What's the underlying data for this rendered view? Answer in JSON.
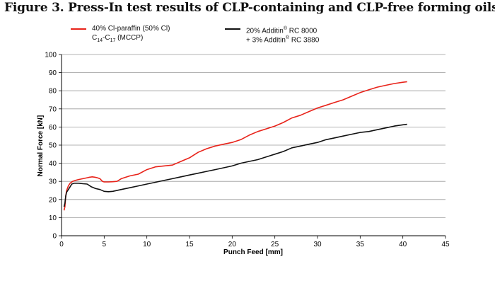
{
  "figure": {
    "title": "Figure 3. Press-In test results of CLP-containing and CLP-free forming oils"
  },
  "legend": {
    "red_line1": "40% Cl-paraffin (50% Cl)",
    "red_line2_a": "C",
    "red_line2_sub1": "14",
    "red_line2_b": "-C",
    "red_line2_sub2": "17",
    "red_line2_c": " (MCCP)",
    "black_line1_a": "20% Additin",
    "black_line1_reg": "®",
    "black_line1_b": " RC 8000",
    "black_line2_a": "+ 3% Additin",
    "black_line2_reg": "®",
    "black_line2_b": " RC 3880"
  },
  "chart_data": {
    "type": "line",
    "title": "Figure 3. Press-In test results of CLP-containing and CLP-free forming oils",
    "xlabel": "Punch Feed [mm]",
    "ylabel": "Normal Force [kN]",
    "xlim": [
      0,
      45
    ],
    "ylim": [
      0,
      100
    ],
    "xticks": [
      0,
      5,
      10,
      15,
      20,
      25,
      30,
      35,
      40,
      45
    ],
    "yticks": [
      0,
      10,
      20,
      30,
      40,
      50,
      60,
      70,
      80,
      90,
      100
    ],
    "grid": true,
    "legend_position": "top",
    "series": [
      {
        "name": "40% Cl-paraffin (50% Cl) C14-C17 (MCCP)",
        "color": "#e8231a",
        "x": [
          0.3,
          0.4,
          0.5,
          0.6,
          0.8,
          1.0,
          1.3,
          1.6,
          2.0,
          2.5,
          3.0,
          3.3,
          3.6,
          3.9,
          4.2,
          4.5,
          4.8,
          5.0,
          5.5,
          6.0,
          6.5,
          7.0,
          8.0,
          9.0,
          10.0,
          11.0,
          12.0,
          13.0,
          14.0,
          15.0,
          16.0,
          17.0,
          18.0,
          19.0,
          20.0,
          21.0,
          22.0,
          23.0,
          24.0,
          25.0,
          26.0,
          27.0,
          28.0,
          29.0,
          30.0,
          31.0,
          32.0,
          33.0,
          34.0,
          35.0,
          36.0,
          37.0,
          38.0,
          39.0,
          40.0,
          40.5
        ],
        "y": [
          14,
          16,
          22,
          25,
          27.5,
          29,
          30,
          30.5,
          31,
          31.5,
          32,
          32.3,
          32.5,
          32.3,
          32,
          31.5,
          30,
          29.7,
          29.7,
          29.8,
          30,
          31.5,
          33,
          34,
          36.5,
          38,
          38.5,
          39,
          41,
          43,
          46,
          48,
          49.5,
          50.5,
          51.5,
          53,
          55.5,
          57.5,
          59,
          60.5,
          62.5,
          65,
          66.5,
          68.5,
          70.5,
          72,
          73.5,
          75,
          77,
          79,
          80.5,
          82,
          83,
          84,
          84.7,
          85
        ]
      },
      {
        "name": "20% Additin RC 8000 + 3% Additin RC 3880",
        "color": "#111111",
        "x": [
          0.3,
          0.4,
          0.5,
          0.6,
          0.8,
          1.0,
          1.2,
          1.5,
          2.0,
          2.5,
          3.0,
          3.5,
          4.0,
          4.5,
          5.0,
          5.5,
          6.0,
          7.0,
          8.0,
          9.0,
          10.0,
          11.0,
          12.0,
          13.0,
          14.0,
          15.0,
          16.0,
          17.0,
          18.0,
          19.0,
          20.0,
          21.0,
          22.0,
          23.0,
          24.0,
          25.0,
          26.0,
          27.0,
          28.0,
          29.0,
          30.0,
          31.0,
          32.0,
          33.0,
          34.0,
          35.0,
          36.0,
          37.0,
          38.0,
          39.0,
          40.0,
          40.5
        ],
        "y": [
          16,
          18,
          22,
          24,
          25.5,
          27,
          28.5,
          29,
          29,
          28.7,
          28.5,
          27,
          26,
          25.5,
          24.5,
          24.3,
          24.5,
          25.5,
          26.5,
          27.5,
          28.5,
          29.5,
          30.5,
          31.5,
          32.5,
          33.5,
          34.5,
          35.5,
          36.5,
          37.5,
          38.5,
          40,
          41,
          42,
          43.5,
          45,
          46.5,
          48.5,
          49.5,
          50.5,
          51.5,
          53,
          54,
          55,
          56,
          57,
          57.5,
          58.5,
          59.5,
          60.5,
          61.2,
          61.5
        ]
      }
    ]
  }
}
